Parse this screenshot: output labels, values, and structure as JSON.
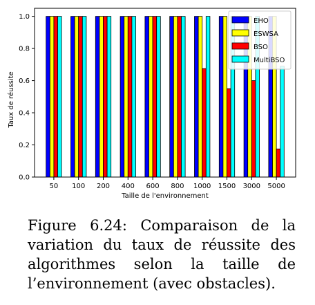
{
  "chart_data": {
    "type": "bar",
    "categories": [
      "50",
      "100",
      "200",
      "400",
      "600",
      "800",
      "1000",
      "1500",
      "3000",
      "5000"
    ],
    "series": [
      {
        "name": "EHO",
        "color": "#0000ff",
        "values": [
          1,
          1,
          1,
          1,
          1,
          1,
          1,
          1,
          1,
          1
        ]
      },
      {
        "name": "ESWSA",
        "color": "#ffff00",
        "values": [
          1,
          1,
          1,
          1,
          1,
          1,
          1,
          1,
          1,
          1
        ]
      },
      {
        "name": "BSO",
        "color": "#ff0000",
        "values": [
          1,
          1,
          1,
          1,
          1,
          1,
          0.675,
          0.55,
          0.6,
          0.175
        ]
      },
      {
        "name": "MultiBSO",
        "color": "#00ffff",
        "values": [
          1,
          1,
          1,
          1,
          1,
          1,
          1,
          1,
          1,
          0.69
        ]
      }
    ],
    "xlabel": "Taille de l'environnement",
    "ylabel": "Taux de réussite",
    "ylim": [
      0,
      1.05
    ],
    "yticks": [
      "0.0",
      "0.2",
      "0.4",
      "0.6",
      "0.8",
      "1.0"
    ],
    "grid": false,
    "legend_position": "top-right"
  },
  "caption": {
    "text": "Figure 6.24: Comparaison de la variation du taux de réussite des algorithmes selon la taille de l’environnement (avec obstacles)."
  }
}
